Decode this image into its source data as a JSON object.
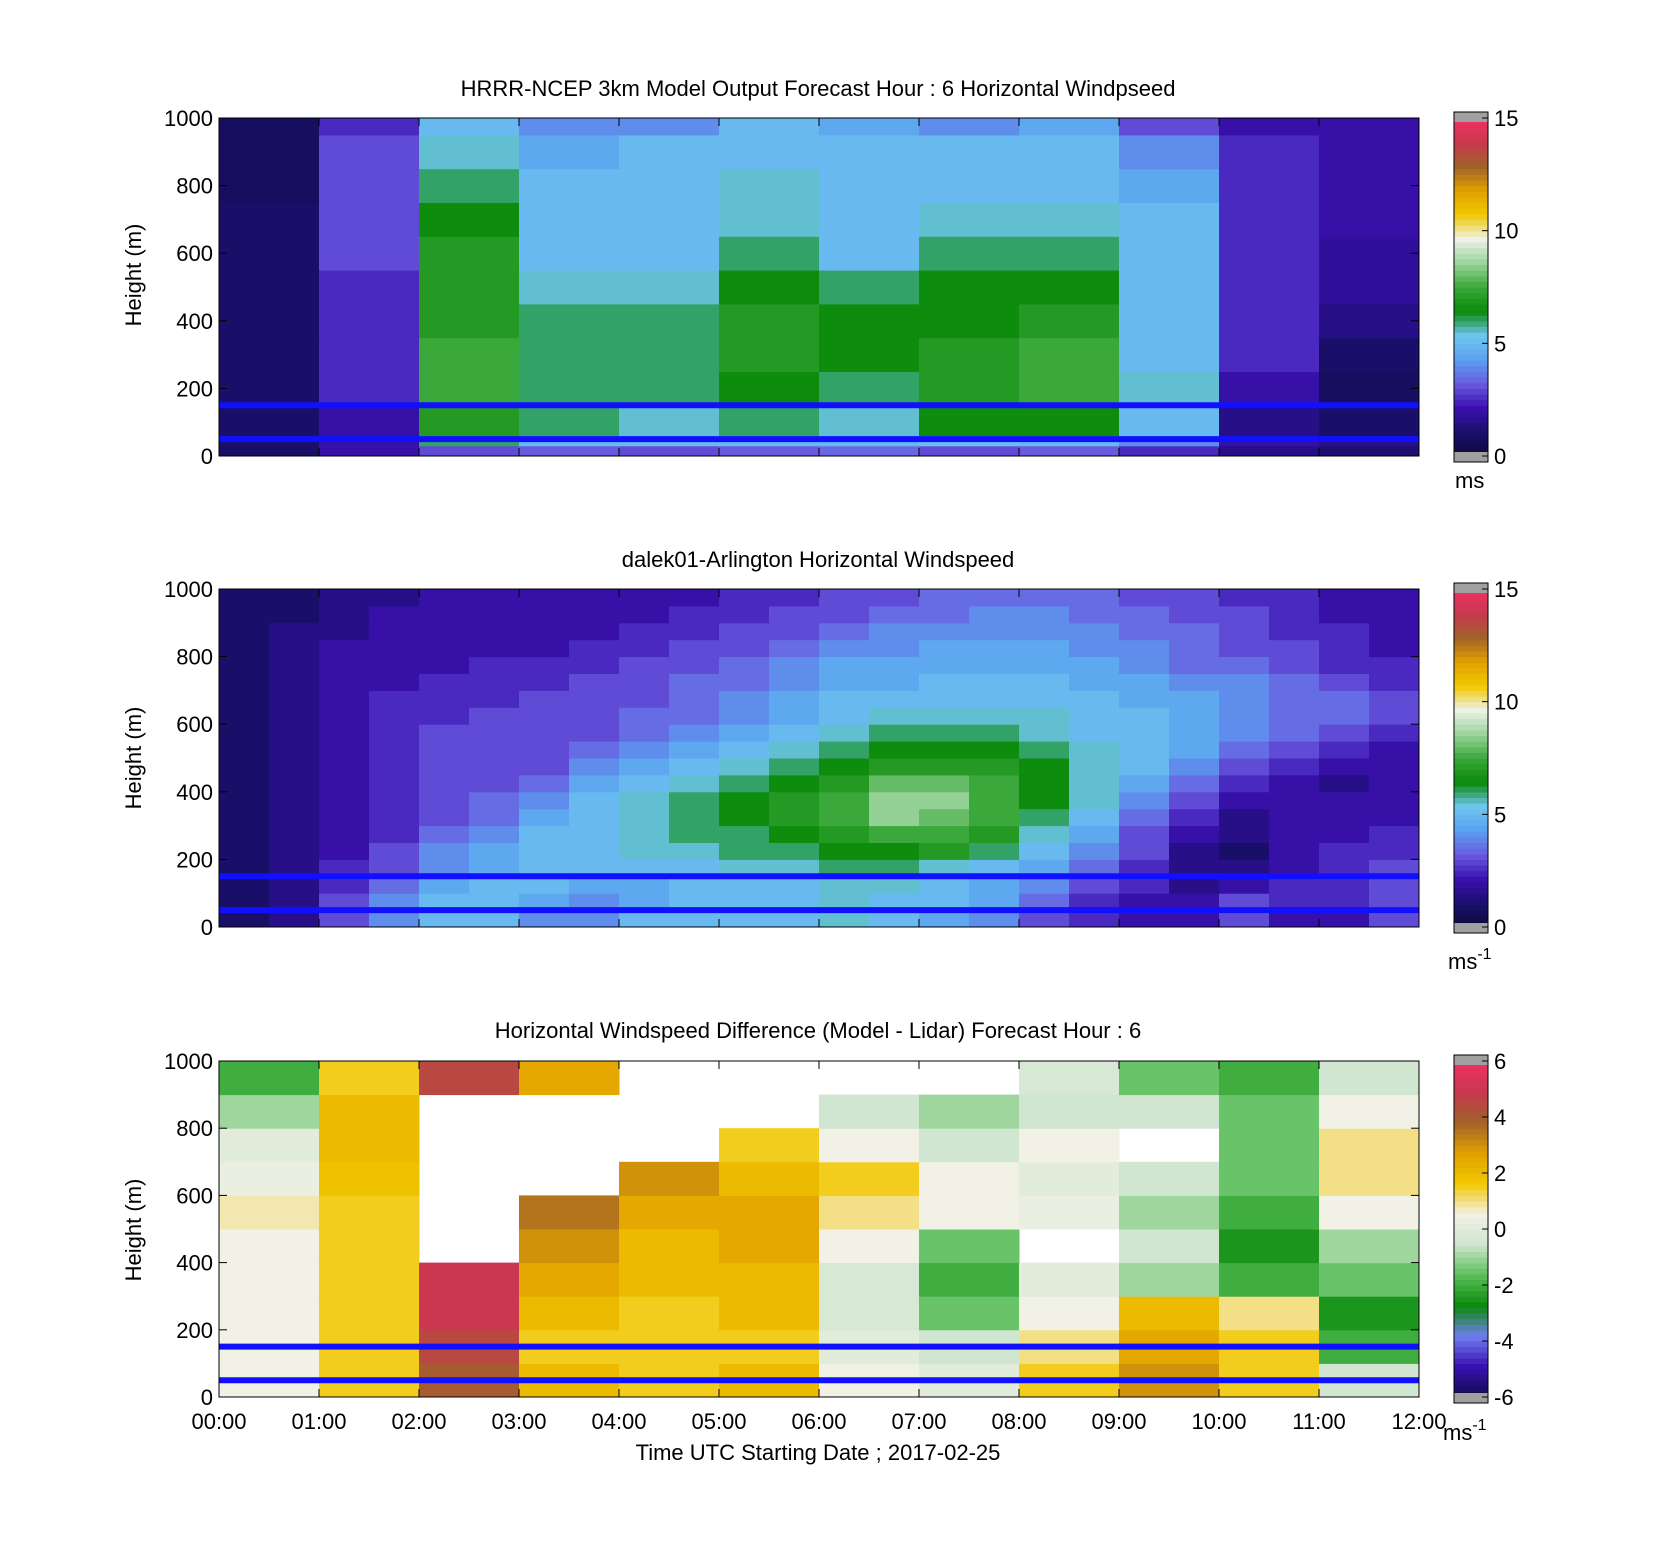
{
  "colors": {
    "speed_scale": [
      "#0d0a3a",
      "#1b0f6b",
      "#3a10b0",
      "#6a5ae0",
      "#5aa0f0",
      "#6fc6f0",
      "#0a8a0a",
      "#3aa83a",
      "#9ad49a",
      "#eef2e8",
      "#f2c800",
      "#e0a000",
      "#a0622a",
      "#c83850",
      "#f03060"
    ],
    "diff_scale": [
      "#120c4a",
      "#3a10b0",
      "#6f7ff0",
      "#0a8a0a",
      "#5abf5a",
      "#cfe6cf",
      "#f3f1e6",
      "#f2c800",
      "#e0a000",
      "#a0622a",
      "#c83850",
      "#f03060"
    ],
    "band_lines": "#1010ff",
    "gap_gray": "#a0a0a0"
  },
  "chart_data": [
    {
      "type": "heatmap",
      "title": "HRRR-NCEP 3km Model Output   Forecast Hour : 6 Horizontal Windpseed",
      "ylabel": "Height (m)",
      "xlabel": "",
      "ylim": [
        0,
        1000
      ],
      "xlim": [
        "00:00",
        "12:00"
      ],
      "yticks": [
        "0",
        "200",
        "400",
        "600",
        "800",
        "1000"
      ],
      "xtick_labels_shown": false,
      "colorbar": {
        "ticks": [
          "0",
          "5",
          "10",
          "15"
        ],
        "unit_label": "ms",
        "unit_sup": "",
        "range": [
          0,
          15
        ]
      },
      "reference_lines_m": [
        50,
        150
      ],
      "x_hours": [
        0,
        1,
        2,
        3,
        4,
        5,
        6,
        7,
        8,
        9,
        10,
        11,
        12
      ],
      "heights_m": [
        0,
        30,
        60,
        150,
        250,
        350,
        450,
        550,
        650,
        750,
        850,
        950,
        1000
      ],
      "values": [
        [
          1.0,
          2.0,
          3.0,
          3.2,
          3.0,
          3.2,
          3.4,
          3.0,
          3.2,
          2.5,
          1.5,
          1.2
        ],
        [
          1.0,
          2.0,
          6.0,
          5.0,
          5.0,
          5.0,
          5.0,
          5.2,
          5.0,
          4.0,
          2.0,
          1.5
        ],
        [
          1.0,
          2.0,
          7.0,
          6.0,
          5.5,
          6.0,
          5.5,
          6.5,
          6.5,
          5.0,
          1.5,
          1.0
        ],
        [
          1.0,
          2.5,
          7.5,
          6.0,
          6.0,
          6.5,
          6.0,
          7.0,
          7.5,
          5.5,
          2.0,
          0.8
        ],
        [
          1.0,
          2.5,
          7.5,
          6.0,
          6.0,
          7.0,
          6.5,
          7.0,
          7.5,
          5.0,
          2.5,
          1.0
        ],
        [
          1.0,
          2.5,
          7.0,
          6.0,
          6.0,
          7.0,
          6.5,
          6.5,
          7.0,
          5.0,
          2.5,
          1.5
        ],
        [
          1.0,
          2.5,
          7.0,
          5.5,
          5.5,
          6.5,
          6.0,
          6.5,
          6.5,
          5.0,
          2.5,
          1.8
        ],
        [
          1.0,
          3.0,
          7.0,
          5.0,
          5.0,
          6.0,
          5.0,
          6.0,
          6.0,
          5.0,
          2.5,
          1.8
        ],
        [
          1.0,
          3.0,
          6.5,
          5.0,
          5.0,
          5.5,
          5.0,
          5.5,
          5.5,
          5.0,
          2.5,
          2.0
        ],
        [
          0.8,
          3.0,
          6.0,
          5.0,
          5.0,
          5.5,
          5.0,
          5.0,
          5.0,
          4.5,
          2.5,
          2.0
        ],
        [
          0.8,
          3.0,
          5.5,
          4.5,
          5.0,
          5.0,
          5.0,
          5.0,
          5.0,
          4.0,
          2.5,
          2.0
        ],
        [
          0.8,
          2.5,
          5.0,
          4.0,
          4.0,
          5.0,
          4.5,
          4.0,
          4.5,
          3.0,
          2.0,
          2.0
        ]
      ]
    },
    {
      "type": "heatmap",
      "title": "dalek01-Arlington  Horizontal Windspeed",
      "ylabel": "Height (m)",
      "xlabel": "",
      "ylim": [
        0,
        1000
      ],
      "xlim": [
        "00:00",
        "12:00"
      ],
      "yticks": [
        "0",
        "200",
        "400",
        "600",
        "800",
        "1000"
      ],
      "xtick_labels_shown": false,
      "colorbar": {
        "ticks": [
          "0",
          "5",
          "10",
          "15"
        ],
        "unit_label": "ms",
        "unit_sup": "-1",
        "range": [
          0,
          15
        ]
      },
      "reference_lines_m": [
        50,
        150
      ],
      "x_hours": [
        0.0,
        0.5,
        1.0,
        1.5,
        2.0,
        2.5,
        3.0,
        3.5,
        4.0,
        4.5,
        5.0,
        5.5,
        6.0,
        6.5,
        7.0,
        7.5,
        8.0,
        8.5,
        9.0,
        9.5,
        10.0,
        10.5,
        11.0,
        11.5,
        12.0
      ],
      "heights_m": [
        0,
        50,
        100,
        150,
        200,
        250,
        300,
        350,
        400,
        450,
        500,
        550,
        600,
        650,
        700,
        750,
        800,
        850,
        900,
        950,
        1000
      ],
      "values": [
        [
          1.0,
          1.5,
          3.0,
          4.0,
          5.0,
          5.0,
          4.0,
          4.0,
          5.0,
          5.0,
          5.0,
          5.0,
          5.5,
          5.0,
          4.5,
          4.0,
          3.0,
          2.5,
          2.0,
          2.0,
          3.0,
          2.0,
          2.0,
          3.0
        ],
        [
          1.0,
          1.5,
          3.0,
          4.0,
          5.0,
          5.0,
          4.5,
          4.0,
          4.5,
          5.0,
          5.0,
          5.0,
          5.5,
          5.0,
          5.0,
          4.5,
          3.5,
          2.5,
          2.0,
          2.0,
          3.0,
          2.5,
          2.5,
          3.0
        ],
        [
          1.0,
          1.5,
          2.5,
          3.5,
          4.5,
          5.0,
          5.0,
          4.5,
          4.5,
          5.0,
          5.0,
          5.0,
          5.5,
          5.5,
          5.0,
          4.5,
          4.0,
          3.0,
          2.5,
          1.5,
          2.0,
          2.5,
          2.5,
          3.0
        ],
        [
          1.0,
          1.5,
          2.5,
          3.0,
          4.0,
          4.5,
          5.0,
          5.0,
          5.0,
          5.0,
          5.5,
          5.5,
          6.0,
          6.0,
          5.5,
          5.0,
          4.5,
          3.5,
          2.5,
          1.5,
          1.5,
          2.0,
          2.5,
          3.0
        ],
        [
          1.0,
          1.5,
          2.0,
          3.0,
          4.0,
          4.5,
          5.0,
          5.0,
          5.5,
          5.5,
          6.0,
          6.0,
          6.5,
          6.5,
          7.0,
          6.0,
          5.0,
          4.0,
          3.0,
          1.5,
          1.0,
          2.0,
          2.5,
          2.5
        ],
        [
          1.0,
          1.5,
          2.0,
          2.5,
          3.5,
          4.0,
          5.0,
          5.0,
          5.5,
          6.0,
          6.0,
          6.5,
          7.0,
          7.5,
          7.5,
          7.0,
          5.5,
          4.5,
          3.0,
          2.0,
          1.5,
          2.0,
          2.0,
          2.5
        ],
        [
          1.0,
          1.5,
          2.0,
          2.5,
          3.0,
          3.5,
          4.5,
          5.0,
          5.5,
          6.0,
          6.5,
          7.0,
          7.5,
          8.5,
          8.0,
          7.5,
          6.0,
          5.0,
          3.5,
          2.5,
          1.5,
          2.0,
          2.0,
          2.0
        ],
        [
          1.0,
          1.5,
          2.0,
          2.5,
          3.0,
          3.5,
          4.0,
          5.0,
          5.5,
          6.0,
          6.5,
          7.0,
          7.5,
          8.5,
          8.5,
          7.5,
          6.5,
          5.5,
          4.0,
          3.0,
          2.0,
          2.0,
          2.0,
          2.0
        ],
        [
          1.0,
          1.5,
          2.0,
          2.5,
          3.0,
          3.0,
          3.5,
          4.5,
          5.0,
          5.5,
          6.0,
          6.5,
          7.0,
          8.0,
          8.0,
          7.5,
          6.5,
          5.5,
          4.5,
          3.5,
          2.5,
          2.0,
          1.5,
          2.0
        ],
        [
          1.0,
          1.5,
          2.0,
          2.5,
          3.0,
          3.0,
          3.0,
          4.0,
          4.5,
          5.0,
          5.5,
          6.0,
          6.5,
          7.0,
          7.0,
          7.0,
          6.5,
          5.5,
          5.0,
          4.0,
          3.0,
          2.5,
          2.0,
          2.0
        ],
        [
          1.0,
          1.5,
          2.0,
          2.5,
          3.0,
          3.0,
          3.0,
          3.5,
          4.0,
          4.5,
          5.0,
          5.5,
          6.0,
          6.5,
          6.5,
          6.5,
          6.0,
          5.5,
          5.0,
          4.5,
          3.5,
          3.0,
          2.5,
          2.0
        ],
        [
          1.0,
          1.5,
          2.0,
          2.5,
          3.0,
          3.0,
          3.0,
          3.0,
          3.5,
          4.0,
          4.5,
          5.0,
          5.5,
          6.0,
          6.0,
          6.0,
          5.5,
          5.0,
          5.0,
          4.5,
          4.0,
          3.5,
          3.0,
          2.5
        ],
        [
          1.0,
          1.5,
          2.0,
          2.5,
          2.5,
          3.0,
          3.0,
          3.0,
          3.5,
          3.5,
          4.0,
          4.5,
          5.0,
          5.5,
          5.5,
          5.5,
          5.5,
          5.0,
          5.0,
          4.5,
          4.0,
          3.5,
          3.5,
          3.0
        ],
        [
          1.0,
          1.5,
          2.0,
          2.5,
          2.5,
          2.5,
          3.0,
          3.0,
          3.0,
          3.5,
          4.0,
          4.5,
          5.0,
          5.0,
          5.0,
          5.0,
          5.0,
          5.0,
          4.5,
          4.5,
          4.0,
          3.5,
          3.5,
          3.0
        ],
        [
          1.0,
          1.5,
          2.0,
          2.0,
          2.5,
          2.5,
          2.5,
          3.0,
          3.0,
          3.5,
          3.5,
          4.0,
          4.5,
          4.5,
          5.0,
          5.0,
          5.0,
          4.5,
          4.5,
          4.0,
          4.0,
          3.5,
          3.0,
          2.5
        ],
        [
          1.0,
          1.5,
          2.0,
          2.0,
          2.0,
          2.5,
          2.5,
          2.5,
          3.0,
          3.0,
          3.5,
          4.0,
          4.5,
          4.5,
          4.5,
          4.5,
          4.5,
          4.5,
          4.0,
          3.5,
          3.5,
          3.0,
          2.5,
          2.5
        ],
        [
          1.0,
          1.5,
          2.0,
          2.0,
          2.0,
          2.0,
          2.0,
          2.5,
          2.5,
          3.0,
          3.0,
          3.5,
          4.0,
          4.0,
          4.5,
          4.5,
          4.5,
          4.0,
          4.0,
          3.5,
          3.0,
          3.0,
          2.5,
          2.0
        ],
        [
          1.0,
          1.5,
          1.5,
          2.0,
          2.0,
          2.0,
          2.0,
          2.0,
          2.5,
          2.5,
          3.0,
          3.0,
          3.5,
          4.0,
          4.0,
          4.0,
          4.0,
          4.0,
          3.5,
          3.5,
          3.0,
          2.5,
          2.5,
          2.0
        ],
        [
          1.0,
          1.0,
          1.5,
          2.0,
          2.0,
          2.0,
          2.0,
          2.0,
          2.0,
          2.5,
          2.5,
          3.0,
          3.0,
          3.5,
          3.5,
          4.0,
          4.0,
          3.5,
          3.5,
          3.0,
          3.0,
          2.5,
          2.0,
          2.0
        ],
        [
          1.0,
          1.0,
          1.5,
          1.5,
          2.0,
          2.0,
          2.0,
          2.0,
          2.0,
          2.0,
          2.5,
          2.5,
          3.0,
          3.0,
          3.5,
          3.5,
          3.5,
          3.5,
          3.0,
          3.0,
          2.5,
          2.5,
          2.0,
          2.0
        ]
      ]
    },
    {
      "type": "heatmap",
      "title": "Horizontal Windspeed Difference (Model - Lidar) Forecast Hour : 6",
      "ylabel": "Height (m)",
      "xlabel": "Time UTC  Starting Date ; 2017-02-25",
      "ylim": [
        0,
        1000
      ],
      "xlim": [
        "00:00",
        "12:00"
      ],
      "yticks": [
        "0",
        "200",
        "400",
        "600",
        "800",
        "1000"
      ],
      "xticks": [
        "00:00",
        "01:00",
        "02:00",
        "03:00",
        "04:00",
        "05:00",
        "06:00",
        "07:00",
        "08:00",
        "09:00",
        "10:00",
        "11:00",
        "12:00"
      ],
      "xtick_labels_shown": true,
      "colorbar": {
        "ticks": [
          "-6",
          "-4",
          "-2",
          "0",
          "2",
          "4",
          "6"
        ],
        "unit_label": "ms",
        "unit_sup": "-1",
        "range": [
          -6,
          6
        ]
      },
      "reference_lines_m": [
        50,
        150
      ],
      "x_hours": [
        0,
        1,
        2,
        3,
        4,
        5,
        6,
        7,
        8,
        9,
        10,
        11,
        12
      ],
      "heights_m": [
        0,
        100,
        200,
        300,
        400,
        500,
        600,
        700,
        800,
        900,
        1000
      ],
      "values": [
        [
          0.5,
          1.5,
          4.0,
          2.0,
          1.5,
          2.0,
          0.5,
          0.0,
          1.5,
          3.0,
          1.5,
          -0.5
        ],
        [
          0.5,
          1.5,
          4.5,
          1.5,
          1.5,
          1.5,
          0.0,
          -0.5,
          1.0,
          2.5,
          1.5,
          -2.0
        ],
        [
          0.5,
          1.5,
          5.0,
          2.0,
          1.5,
          2.0,
          -0.3,
          -1.5,
          0.5,
          2.0,
          1.0,
          -2.5
        ],
        [
          0.5,
          1.5,
          5.0,
          2.5,
          2.0,
          2.0,
          -0.3,
          -2.0,
          0.0,
          -1.0,
          -2.0,
          -1.5
        ],
        [
          0.5,
          1.5,
          null,
          3.0,
          2.0,
          2.5,
          0.5,
          -1.5,
          null,
          -0.5,
          -2.5,
          -1.0
        ],
        [
          0.8,
          1.5,
          null,
          3.5,
          2.5,
          2.5,
          1.0,
          0.5,
          0.3,
          -1.0,
          -2.0,
          0.5
        ],
        [
          0.3,
          1.8,
          null,
          null,
          3.0,
          2.0,
          1.5,
          0.5,
          0.0,
          -0.5,
          -1.5,
          1.0
        ],
        [
          0.0,
          2.0,
          null,
          null,
          null,
          1.5,
          0.5,
          -0.5,
          0.5,
          null,
          -1.5,
          1.0
        ],
        [
          -1.0,
          2.0,
          null,
          null,
          null,
          null,
          -0.5,
          -1.0,
          -0.5,
          -0.5,
          -1.5,
          0.5
        ],
        [
          -2.0,
          1.5,
          4.5,
          2.5,
          null,
          null,
          null,
          null,
          -0.3,
          -1.5,
          -2.0,
          -0.5
        ]
      ]
    }
  ]
}
